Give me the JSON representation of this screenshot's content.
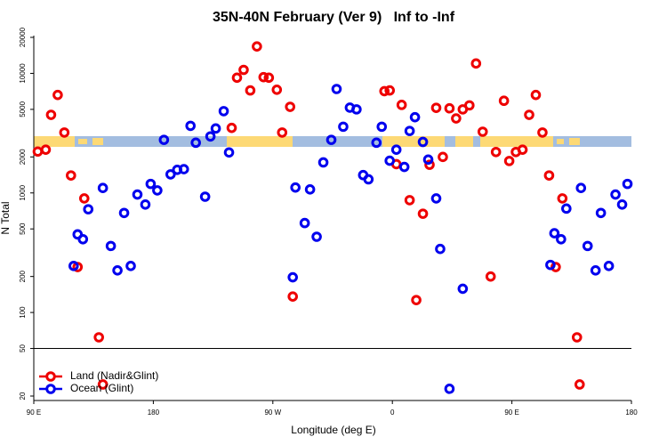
{
  "chart_data": {
    "type": "scatter",
    "title": "35N-40N February (Ver 9)   Inf to -Inf",
    "x_label": "Longitude (deg E)",
    "y_label": "N Total",
    "xlim": [
      -270,
      180
    ],
    "xticks": [
      {
        "value": -270,
        "label": "90 E"
      },
      {
        "value": -180,
        "label": "180"
      },
      {
        "value": -90,
        "label": "90 W"
      },
      0,
      {
        "value": 90,
        "label": "90 E"
      },
      180
    ],
    "ylim": [
      20,
      20000
    ],
    "yticks": [
      20,
      50,
      100,
      200,
      500,
      1000,
      2000,
      5000,
      10000,
      20000
    ],
    "log_y": true,
    "hline": 50,
    "legend": "lower left",
    "series": [
      {
        "name": "Land (Nadir&Glint)",
        "color": "#ee0000",
        "x": [
          -267,
          -261,
          -257,
          -252,
          -247,
          -242,
          -237,
          -232,
          -221,
          -218,
          -121,
          -117,
          -112,
          -107,
          -102,
          -97,
          -93,
          -87,
          -83,
          -77,
          -75,
          -6,
          -2,
          3,
          7,
          13,
          18,
          23,
          28,
          33,
          38,
          43,
          48,
          53,
          58,
          63,
          68,
          74,
          78,
          84,
          88,
          93,
          98,
          103,
          108,
          113,
          118,
          123,
          128,
          139,
          141
        ],
        "values": [
          2220,
          2300,
          4500,
          6600,
          3200,
          1400,
          240,
          900,
          62,
          25,
          3500,
          9200,
          10700,
          7200,
          16800,
          9300,
          9200,
          7300,
          3200,
          5250,
          136,
          7100,
          7200,
          1740,
          5450,
          870,
          127,
          670,
          1720,
          5150,
          2000,
          5100,
          4200,
          5000,
          5400,
          12100,
          3250,
          200,
          2200,
          5900,
          1850,
          2200,
          2300,
          4500,
          6600,
          3200,
          1400,
          240,
          900,
          62,
          25
        ]
      },
      {
        "name": "Ocean (Glint)",
        "color": "#0000ee",
        "x": [
          -240,
          -237,
          -233,
          -229,
          -218,
          -212,
          -207,
          -202,
          -197,
          -192,
          -186,
          -182,
          -177,
          -172,
          -167,
          -162,
          -157,
          -152,
          -148,
          -141,
          -137,
          -133,
          -127,
          -123,
          -75,
          -73,
          -66,
          -62,
          -57,
          -52,
          -46,
          -42,
          -37,
          -32,
          -27,
          -22,
          -18,
          -12,
          -8,
          -2,
          3,
          9,
          13,
          17,
          23,
          27,
          33,
          36,
          43,
          53,
          119,
          122,
          127,
          131,
          142,
          147,
          153,
          157,
          163,
          168,
          173,
          177
        ],
        "values": [
          245,
          450,
          410,
          730,
          1100,
          360,
          225,
          680,
          245,
          970,
          800,
          1190,
          1050,
          2780,
          1430,
          1560,
          1580,
          3640,
          2630,
          930,
          2970,
          3460,
          4830,
          2180,
          197,
          1110,
          560,
          1070,
          430,
          1800,
          2780,
          7400,
          3580,
          5170,
          5000,
          1410,
          1300,
          2630,
          3580,
          1860,
          2300,
          1650,
          3300,
          4300,
          2670,
          1900,
          900,
          340,
          23,
          158,
          250,
          460,
          410,
          740,
          1100,
          360,
          225,
          680,
          245,
          970,
          800,
          1190
        ]
      }
    ]
  }
}
